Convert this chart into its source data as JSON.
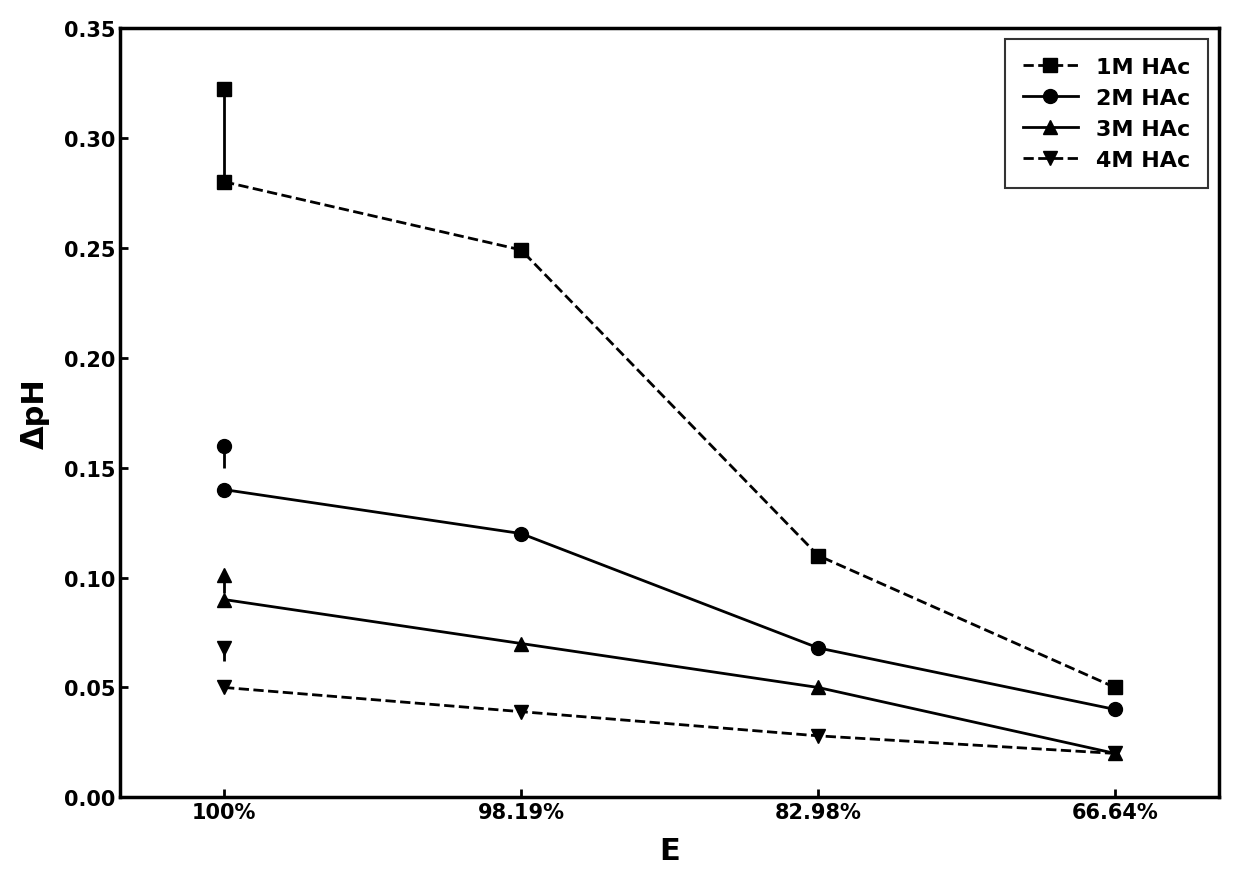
{
  "x_labels": [
    "100%",
    "98.19%",
    "82.98%",
    "66.64%"
  ],
  "x_positions": [
    0,
    1,
    2,
    3
  ],
  "series": [
    {
      "label": "1M HAc",
      "y_values": [
        0.28,
        0.249,
        0.11,
        0.05
      ],
      "err_upper": 0.322,
      "err_lower": 0.282,
      "marker": "s",
      "linestyle": "--"
    },
    {
      "label": "2M HAc",
      "y_values": [
        0.14,
        0.12,
        0.068,
        0.04
      ],
      "err_upper": 0.16,
      "err_lower": 0.15,
      "marker": "o",
      "linestyle": "-"
    },
    {
      "label": "3M HAc",
      "y_values": [
        0.09,
        0.07,
        0.05,
        0.02
      ],
      "err_upper": 0.101,
      "err_lower": 0.093,
      "marker": "^",
      "linestyle": "-"
    },
    {
      "label": "4M HAc",
      "y_values": [
        0.05,
        0.039,
        0.028,
        0.02
      ],
      "err_upper": 0.068,
      "err_lower": 0.062,
      "marker": "v",
      "linestyle": "--"
    }
  ],
  "ylabel": "ΔpH",
  "xlabel": "E",
  "ylim": [
    0.0,
    0.35
  ],
  "yticks": [
    0.0,
    0.05,
    0.1,
    0.15,
    0.2,
    0.25,
    0.3,
    0.35
  ],
  "line_color": "#000000",
  "background_color": "#ffffff",
  "marker_size": 10,
  "linewidth": 2.0,
  "legend_fontsize": 16,
  "axis_label_fontsize": 22,
  "tick_fontsize": 15
}
